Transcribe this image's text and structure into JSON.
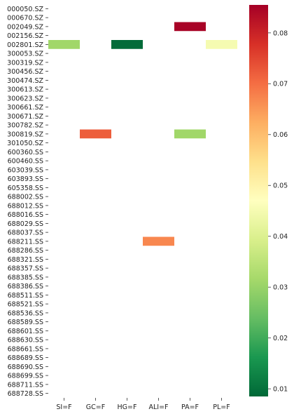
{
  "chart_data": {
    "type": "heatmap",
    "rows": [
      "000050.SZ",
      "000670.SZ",
      "002049.SZ",
      "002156.SZ",
      "002801.SZ",
      "300053.SZ",
      "300319.SZ",
      "300456.SZ",
      "300474.SZ",
      "300613.SZ",
      "300623.SZ",
      "300661.SZ",
      "300671.SZ",
      "300782.SZ",
      "300819.SZ",
      "301050.SZ",
      "600360.SS",
      "600460.SS",
      "603039.SS",
      "603893.SS",
      "605358.SS",
      "688002.SS",
      "688012.SS",
      "688016.SS",
      "688029.SS",
      "688037.SS",
      "688211.SS",
      "688286.SS",
      "688321.SS",
      "688357.SS",
      "688385.SS",
      "688386.SS",
      "688511.SS",
      "688521.SS",
      "688536.SS",
      "688589.SS",
      "688601.SS",
      "688630.SS",
      "688661.SS",
      "688689.SS",
      "688690.SS",
      "688699.SS",
      "688711.SS",
      "688728.SS"
    ],
    "columns": [
      "SI=F",
      "GC=F",
      "HG=F",
      "ALI=F",
      "PA=F",
      "PL=F"
    ],
    "cells": [
      {
        "row": "002049.SZ",
        "col": "PA=F",
        "value": 0.085
      },
      {
        "row": "002801.SZ",
        "col": "SI=F",
        "value": 0.031
      },
      {
        "row": "002801.SZ",
        "col": "HG=F",
        "value": 0.009
      },
      {
        "row": "002801.SZ",
        "col": "PL=F",
        "value": 0.045
      },
      {
        "row": "300819.SZ",
        "col": "GC=F",
        "value": 0.072
      },
      {
        "row": "300819.SZ",
        "col": "PA=F",
        "value": 0.031
      },
      {
        "row": "688211.SS",
        "col": "ALI=F",
        "value": 0.067
      }
    ],
    "colorbar": {
      "colormap": "RdYlGn_r",
      "vmin": 0.0085,
      "vmax": 0.0855,
      "ticks": [
        0.01,
        0.02,
        0.03,
        0.04,
        0.05,
        0.06,
        0.07,
        0.08
      ],
      "tick_labels": [
        "0.01",
        "0.02",
        "0.03",
        "0.04",
        "0.05",
        "0.06",
        "0.07",
        "0.08"
      ]
    },
    "title": "",
    "xlabel": "",
    "ylabel": "",
    "grid": false
  }
}
